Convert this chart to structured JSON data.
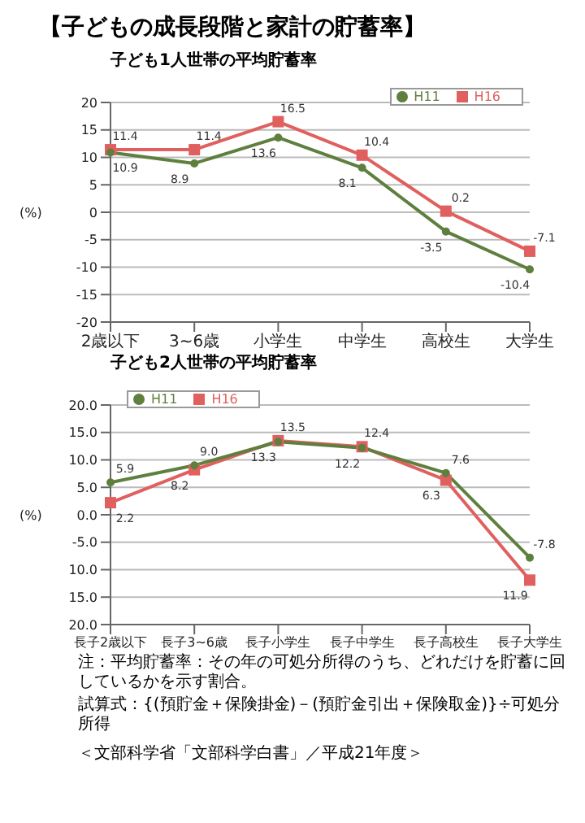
{
  "chart_data": [
    {
      "type": "line",
      "title": "【子どもの成長段階と家計の貯蓄率】",
      "subtitle": "子ども1人世帯の平均貯蓄率",
      "ylabel": "(%)",
      "categories": [
        "2歳以下",
        "3~6歳",
        "小学生",
        "中学生",
        "高校生",
        "大学生"
      ],
      "series": [
        {
          "name": "H11",
          "color": "#5f7f3f",
          "marker": "circle",
          "values": [
            10.9,
            8.9,
            13.6,
            8.1,
            -3.5,
            -10.4
          ]
        },
        {
          "name": "H16",
          "color": "#e0605f",
          "marker": "square",
          "values": [
            11.4,
            11.4,
            16.5,
            10.4,
            0.2,
            -7.1
          ]
        }
      ],
      "ylim": [
        -20,
        20
      ],
      "yticks": [
        -20,
        -15,
        -10,
        -5,
        0,
        5,
        10,
        15,
        20
      ],
      "grid": "y",
      "legend": "top right",
      "data_labels": true
    },
    {
      "type": "line",
      "title": "子ども2人世帯の平均貯蓄率",
      "ylabel": "(%)",
      "categories": [
        "長子2歳以下",
        "長子3~6歳",
        "長子小学生",
        "長子中学生",
        "長子高校生",
        "長子大学生"
      ],
      "series": [
        {
          "name": "H11",
          "color": "#5f7f3f",
          "marker": "circle",
          "values": [
            5.9,
            9.0,
            13.3,
            12.2,
            7.6,
            -7.8
          ]
        },
        {
          "name": "H16",
          "color": "#e0605f",
          "marker": "square",
          "values": [
            2.2,
            8.2,
            13.5,
            12.4,
            6.3,
            -11.9
          ]
        }
      ],
      "value_labels": [
        [
          "5.9",
          "9.0",
          "13.3",
          "12.2",
          "7.6",
          "-7.8"
        ],
        [
          "2.2",
          "8.2",
          "13.5",
          "12.4",
          "6.3",
          "11.9"
        ]
      ],
      "ylim": [
        -20,
        20
      ],
      "yticks": [
        {
          "value": -20,
          "label": "20.0"
        },
        {
          "value": -15,
          "label": "15.0"
        },
        {
          "value": -10,
          "label": "10.0"
        },
        {
          "value": -5,
          "label": "-5.0"
        },
        {
          "value": 0,
          "label": "0.0"
        },
        {
          "value": 5,
          "label": "5.0"
        },
        {
          "value": 10,
          "label": "10.0"
        },
        {
          "value": 15,
          "label": "15.0"
        },
        {
          "value": 20,
          "label": "20.0"
        }
      ],
      "grid": "y",
      "legend": "top left",
      "annotations": [
        "注：平均貯蓄率：その年の可処分所得のうち、どれだけを貯蓄に回しているかを示す割合。",
        "試算式：{(預貯金＋保険掛金)－(預貯金引出＋保険取金)}÷可処分所得",
        "＜文部科学省「文部科学白書」／平成21年度＞"
      ]
    }
  ]
}
